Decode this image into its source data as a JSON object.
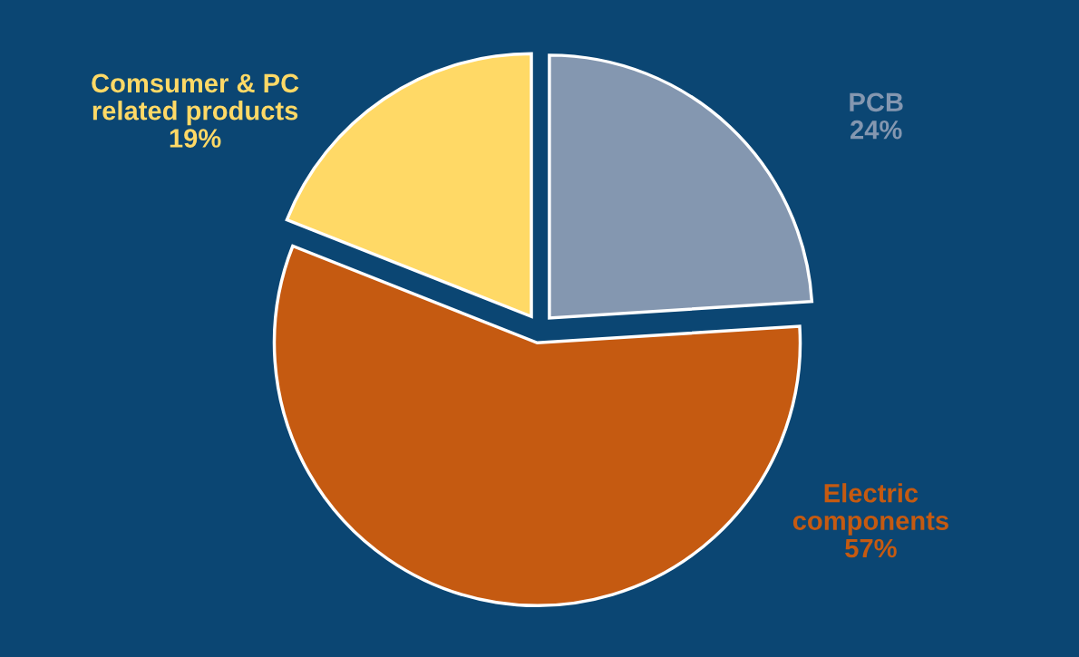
{
  "chart_data": {
    "type": "pie",
    "categories": [
      "PCB\n24%",
      "Electric\ncomponents\n57%",
      "Comsumer & PC\nrelated products\n19%"
    ],
    "values": [
      24,
      57,
      19
    ],
    "colors": [
      "#8497b0",
      "#c55a11",
      "#ffd966"
    ],
    "legend": false
  }
}
